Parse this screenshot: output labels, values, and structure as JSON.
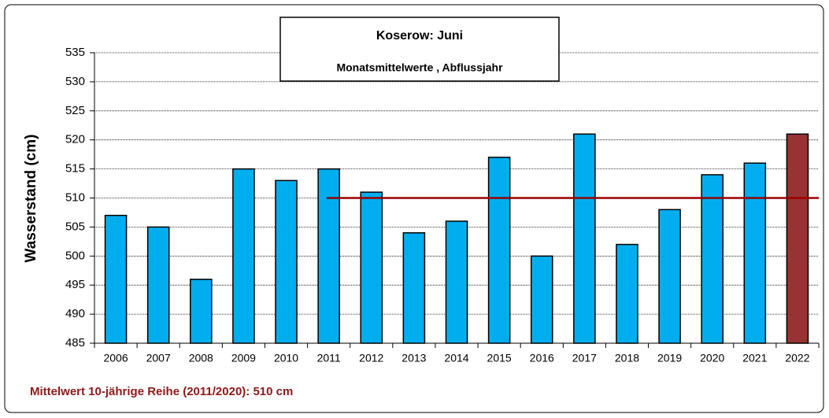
{
  "chart_data": {
    "type": "bar",
    "title": "Koserow: Juni",
    "subtitle": "Monatsmittelwerte , Abflussjahr",
    "y_label": "Wasserstand (cm)",
    "note": "Mittelwert 10-jährige Reihe (2011/2020): 510 cm",
    "categories": [
      "2006",
      "2007",
      "2008",
      "2009",
      "2010",
      "2011",
      "2012",
      "2013",
      "2014",
      "2015",
      "2016",
      "2017",
      "2018",
      "2019",
      "2020",
      "2021",
      "2022"
    ],
    "values": [
      507,
      505,
      496,
      515,
      513,
      515,
      511,
      504,
      506,
      517,
      500,
      521,
      502,
      508,
      514,
      516,
      521
    ],
    "colors": [
      "#00aeef",
      "#00aeef",
      "#00aeef",
      "#00aeef",
      "#00aeef",
      "#00aeef",
      "#00aeef",
      "#00aeef",
      "#00aeef",
      "#00aeef",
      "#00aeef",
      "#00aeef",
      "#00aeef",
      "#00aeef",
      "#00aeef",
      "#00aeef",
      "#993333"
    ],
    "reference_line": {
      "value": 510,
      "from": "2011",
      "color": "#990000"
    },
    "ylim": [
      485,
      535
    ],
    "yticks": [
      485,
      490,
      495,
      500,
      505,
      510,
      515,
      520,
      525,
      530,
      535
    ],
    "grid": true
  }
}
